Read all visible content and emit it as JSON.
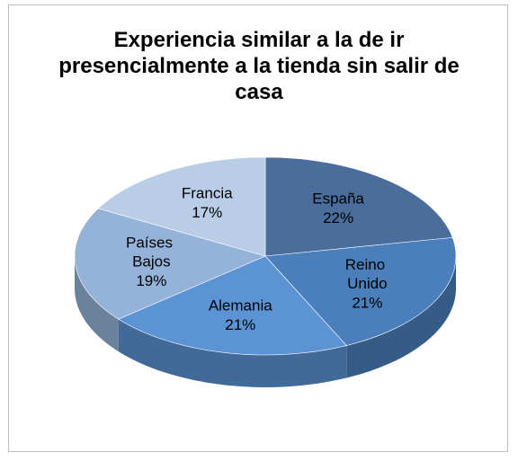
{
  "chart_data": {
    "type": "pie",
    "title": "Experiencia similar a la de ir presencialmente a la tienda sin salir de casa",
    "categories": [
      "España",
      "Reino Unido",
      "Alemania",
      "Países Bajos",
      "Francia"
    ],
    "values": [
      22,
      21,
      21,
      19,
      17
    ],
    "value_labels": [
      "22%",
      "21%",
      "21%",
      "19%",
      "17%"
    ],
    "colors": [
      "#4a6d9c",
      "#4a7fbc",
      "#5b93d4",
      "#95b3d9",
      "#b9cde6"
    ]
  }
}
